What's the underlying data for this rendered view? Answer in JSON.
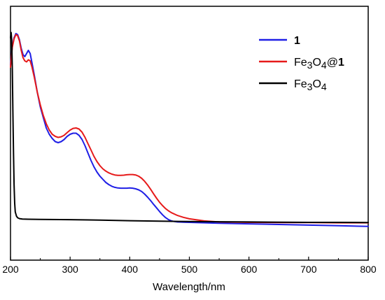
{
  "chart_data": {
    "type": "line",
    "title": "",
    "xlabel": "Wavelength/nm",
    "ylabel": "",
    "xlim": [
      200,
      800
    ],
    "ylim": [
      0,
      1
    ],
    "x_ticks": [
      200,
      300,
      400,
      500,
      600,
      700,
      800
    ],
    "x_tick_labels": [
      "200",
      "300",
      "400",
      "500",
      "600",
      "700",
      "800"
    ],
    "y_ticks_shown": false,
    "grid": false,
    "legend_position": "top-right",
    "series": [
      {
        "name": "1",
        "legend_parts": [
          {
            "text": "1",
            "bold": true,
            "sub": false
          }
        ],
        "color": "#1f1fe6",
        "points": [
          [
            200,
            0.84
          ],
          [
            203,
            0.93
          ],
          [
            206,
            0.97
          ],
          [
            209,
            0.99
          ],
          [
            212,
            0.985
          ],
          [
            215,
            0.96
          ],
          [
            218,
            0.92
          ],
          [
            221,
            0.89
          ],
          [
            224,
            0.88
          ],
          [
            227,
            0.895
          ],
          [
            230,
            0.91
          ],
          [
            233,
            0.895
          ],
          [
            236,
            0.85
          ],
          [
            240,
            0.79
          ],
          [
            245,
            0.71
          ],
          [
            250,
            0.64
          ],
          [
            255,
            0.59
          ],
          [
            260,
            0.54
          ],
          [
            265,
            0.51
          ],
          [
            270,
            0.49
          ],
          [
            275,
            0.475
          ],
          [
            280,
            0.47
          ],
          [
            285,
            0.475
          ],
          [
            290,
            0.485
          ],
          [
            295,
            0.5
          ],
          [
            300,
            0.51
          ],
          [
            305,
            0.515
          ],
          [
            310,
            0.515
          ],
          [
            315,
            0.505
          ],
          [
            320,
            0.485
          ],
          [
            325,
            0.455
          ],
          [
            330,
            0.42
          ],
          [
            335,
            0.385
          ],
          [
            340,
            0.355
          ],
          [
            345,
            0.33
          ],
          [
            350,
            0.31
          ],
          [
            355,
            0.295
          ],
          [
            360,
            0.28
          ],
          [
            365,
            0.27
          ],
          [
            370,
            0.262
          ],
          [
            375,
            0.257
          ],
          [
            380,
            0.254
          ],
          [
            385,
            0.253
          ],
          [
            390,
            0.253
          ],
          [
            395,
            0.253
          ],
          [
            400,
            0.254
          ],
          [
            405,
            0.253
          ],
          [
            410,
            0.25
          ],
          [
            415,
            0.245
          ],
          [
            420,
            0.237
          ],
          [
            425,
            0.225
          ],
          [
            430,
            0.21
          ],
          [
            435,
            0.194
          ],
          [
            440,
            0.176
          ],
          [
            445,
            0.159
          ],
          [
            450,
            0.142
          ],
          [
            455,
            0.126
          ],
          [
            460,
            0.113
          ],
          [
            465,
            0.103
          ],
          [
            470,
            0.097
          ],
          [
            475,
            0.094
          ],
          [
            480,
            0.092
          ],
          [
            490,
            0.091
          ],
          [
            500,
            0.09
          ],
          [
            525,
            0.088
          ],
          [
            550,
            0.086
          ],
          [
            600,
            0.083
          ],
          [
            650,
            0.08
          ],
          [
            700,
            0.077
          ],
          [
            750,
            0.074
          ],
          [
            800,
            0.071
          ]
        ]
      },
      {
        "name": "Fe3O4@1",
        "legend_parts": [
          {
            "text": "Fe",
            "bold": false,
            "sub": false
          },
          {
            "text": "3",
            "bold": false,
            "sub": true
          },
          {
            "text": "O",
            "bold": false,
            "sub": false
          },
          {
            "text": "4",
            "bold": false,
            "sub": true
          },
          {
            "text": "@",
            "bold": false,
            "sub": false
          },
          {
            "text": "1",
            "bold": true,
            "sub": false
          }
        ],
        "color": "#e61a1a",
        "points": [
          [
            200,
            0.83
          ],
          [
            203,
            0.925
          ],
          [
            206,
            0.965
          ],
          [
            209,
            0.985
          ],
          [
            212,
            0.98
          ],
          [
            215,
            0.955
          ],
          [
            218,
            0.91
          ],
          [
            221,
            0.875
          ],
          [
            224,
            0.86
          ],
          [
            227,
            0.855
          ],
          [
            230,
            0.865
          ],
          [
            233,
            0.86
          ],
          [
            236,
            0.83
          ],
          [
            240,
            0.78
          ],
          [
            245,
            0.71
          ],
          [
            250,
            0.65
          ],
          [
            255,
            0.6
          ],
          [
            260,
            0.56
          ],
          [
            265,
            0.53
          ],
          [
            270,
            0.51
          ],
          [
            275,
            0.5
          ],
          [
            280,
            0.495
          ],
          [
            285,
            0.498
          ],
          [
            290,
            0.505
          ],
          [
            295,
            0.518
          ],
          [
            300,
            0.53
          ],
          [
            305,
            0.538
          ],
          [
            310,
            0.54
          ],
          [
            315,
            0.535
          ],
          [
            320,
            0.52
          ],
          [
            325,
            0.495
          ],
          [
            330,
            0.465
          ],
          [
            335,
            0.435
          ],
          [
            340,
            0.405
          ],
          [
            345,
            0.38
          ],
          [
            350,
            0.36
          ],
          [
            355,
            0.345
          ],
          [
            360,
            0.334
          ],
          [
            365,
            0.326
          ],
          [
            370,
            0.32
          ],
          [
            375,
            0.316
          ],
          [
            380,
            0.314
          ],
          [
            385,
            0.314
          ],
          [
            390,
            0.315
          ],
          [
            395,
            0.317
          ],
          [
            400,
            0.318
          ],
          [
            405,
            0.318
          ],
          [
            410,
            0.316
          ],
          [
            415,
            0.31
          ],
          [
            420,
            0.3
          ],
          [
            425,
            0.286
          ],
          [
            430,
            0.268
          ],
          [
            435,
            0.248
          ],
          [
            440,
            0.226
          ],
          [
            445,
            0.205
          ],
          [
            450,
            0.186
          ],
          [
            455,
            0.17
          ],
          [
            460,
            0.156
          ],
          [
            465,
            0.145
          ],
          [
            470,
            0.136
          ],
          [
            480,
            0.123
          ],
          [
            490,
            0.114
          ],
          [
            500,
            0.107
          ],
          [
            525,
            0.097
          ],
          [
            550,
            0.092
          ],
          [
            600,
            0.09
          ],
          [
            650,
            0.089
          ],
          [
            700,
            0.089
          ],
          [
            750,
            0.088
          ],
          [
            800,
            0.088
          ]
        ]
      },
      {
        "name": "Fe3O4",
        "legend_parts": [
          {
            "text": "Fe",
            "bold": false,
            "sub": false
          },
          {
            "text": "3",
            "bold": false,
            "sub": true
          },
          {
            "text": "O",
            "bold": false,
            "sub": false
          },
          {
            "text": "4",
            "bold": false,
            "sub": true
          }
        ],
        "color": "#000000",
        "points": [
          [
            200,
            0.97
          ],
          [
            201,
            0.995
          ],
          [
            202,
            0.96
          ],
          [
            203,
            0.82
          ],
          [
            204,
            0.62
          ],
          [
            205,
            0.42
          ],
          [
            206,
            0.27
          ],
          [
            207,
            0.18
          ],
          [
            208,
            0.14
          ],
          [
            210,
            0.12
          ],
          [
            212,
            0.112
          ],
          [
            215,
            0.108
          ],
          [
            220,
            0.106
          ],
          [
            230,
            0.105
          ],
          [
            250,
            0.104
          ],
          [
            300,
            0.103
          ],
          [
            350,
            0.101
          ],
          [
            400,
            0.098
          ],
          [
            450,
            0.096
          ],
          [
            500,
            0.094
          ],
          [
            550,
            0.093
          ],
          [
            600,
            0.092
          ],
          [
            650,
            0.091
          ],
          [
            700,
            0.09
          ],
          [
            750,
            0.09
          ],
          [
            800,
            0.089
          ]
        ]
      }
    ]
  }
}
